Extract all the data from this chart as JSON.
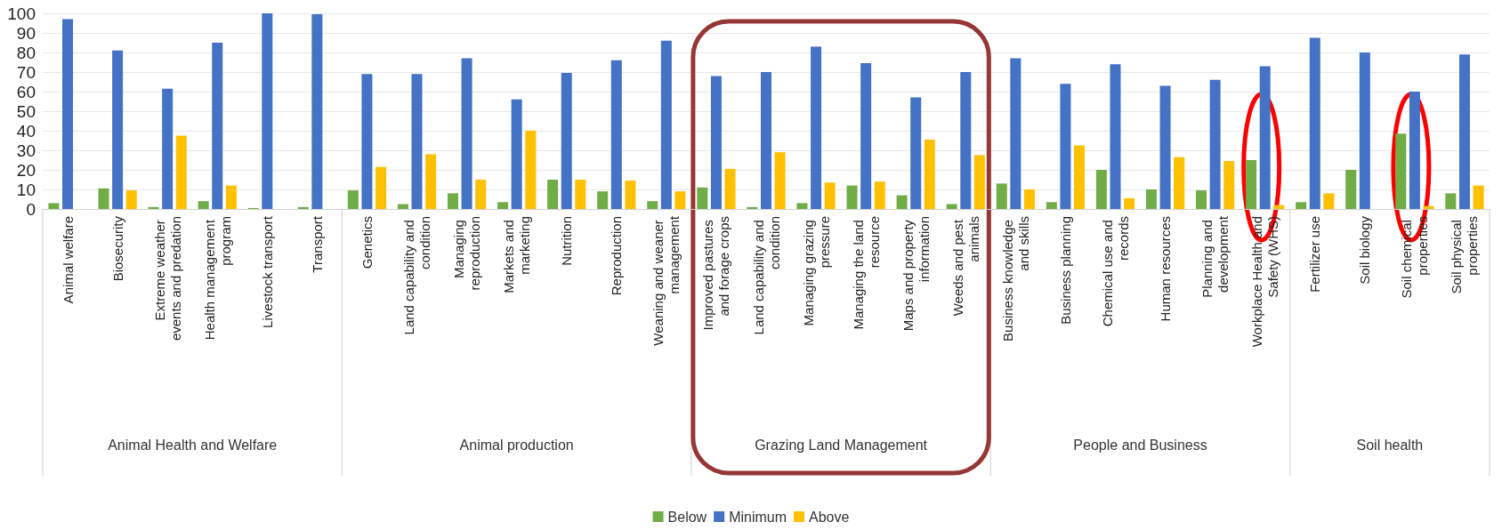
{
  "chart_data": {
    "type": "bar",
    "categories": [
      "Animal welfare",
      "Biosecurity",
      "Extreme weather events and predation",
      "Health management program",
      "Livestock transport",
      "Transport",
      "Genetics",
      "Land capability and condition",
      "Managing reproduction",
      "Markets and marketing",
      "Nutrition",
      "Reproduction",
      "Weaning and weaner management",
      "Improved pastures and forage crops",
      "Land capability and condition",
      "Managing grazing pressure",
      "Managing the land resource",
      "Maps and property information",
      "Weeds and pest animals",
      "Business knowledge and skills",
      "Business planning",
      "Chemical use and records",
      "Human resources",
      "Planning and development",
      "Workplace Health and Safety (WHS)",
      "Fertilizer use",
      "Soil biology",
      "Soil chemical properties",
      "Soil physical properties"
    ],
    "series": [
      {
        "name": "Below",
        "color": "#70ad47",
        "values": [
          3,
          10.5,
          1,
          4,
          0.5,
          1,
          9.5,
          2.5,
          8,
          3.5,
          15,
          9,
          4,
          11,
          1,
          3,
          12,
          7,
          2.5,
          13,
          3.5,
          20,
          10,
          9.5,
          25,
          3.5,
          20,
          38.5,
          8
        ]
      },
      {
        "name": "Minimum",
        "color": "#4472c4",
        "values": [
          97,
          81,
          61.5,
          85,
          100,
          99.5,
          69,
          69,
          77,
          56,
          69.5,
          76,
          86,
          68,
          70,
          83,
          74.5,
          57,
          70,
          77,
          64,
          74,
          63,
          66,
          73,
          87.5,
          80,
          60,
          79
        ]
      },
      {
        "name": "Above",
        "color": "#ffc000",
        "values": [
          0,
          9.5,
          37.5,
          12,
          0,
          0,
          21.5,
          28,
          15,
          40,
          15,
          14.5,
          9,
          20.5,
          29,
          13.5,
          14,
          35.5,
          27.5,
          10,
          32.5,
          5.5,
          26.5,
          24.5,
          2,
          8,
          0,
          1.5,
          12
        ]
      }
    ],
    "annotations": [
      "Animal Health and Welfare",
      "Animal production",
      "Grazing Land Management",
      "People and Business",
      "Soil health"
    ],
    "ylim": [
      0,
      100
    ],
    "yticks": [
      0,
      10,
      20,
      30,
      40,
      50,
      60,
      70,
      80,
      90,
      100
    ],
    "grid": "y",
    "legend": "bottom"
  }
}
